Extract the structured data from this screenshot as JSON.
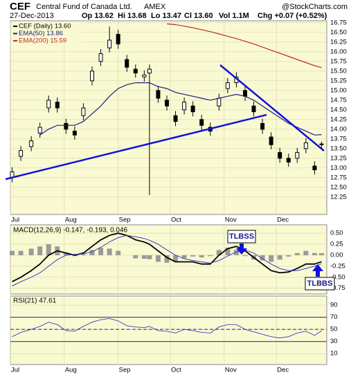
{
  "header": {
    "symbol": "CEF",
    "name": "Central Fund of Canada Ltd.",
    "exchange": "AMEX",
    "source": "@StockCharts.com",
    "date": "27-Dec-2013",
    "open": "Op 13.62",
    "high": "Hi 13.68",
    "low": "Lo 13.47",
    "close": "Cl 13.60",
    "volume": "Vol 1.1M",
    "change": "Chg +0.07 (+0.52%)"
  },
  "chart_data": [
    {
      "type": "candlestick",
      "x": [
        1,
        6,
        12,
        17,
        22,
        27,
        32,
        37,
        42,
        47,
        52,
        57,
        62,
        67,
        72,
        77,
        80,
        85,
        90,
        95,
        100,
        105,
        110,
        115,
        120,
        125,
        130,
        135,
        140,
        145,
        150,
        155,
        160,
        165,
        170,
        175,
        179
      ],
      "xlim": [
        0,
        182
      ],
      "xticks": [
        {
          "value": 0,
          "label": "Jul"
        },
        {
          "value": 31,
          "label": "Aug"
        },
        {
          "value": 62,
          "label": "Sep"
        },
        {
          "value": 92,
          "label": "Oct"
        },
        {
          "value": 123,
          "label": "Nov"
        },
        {
          "value": 153,
          "label": "Dec"
        }
      ],
      "ylim": [
        11.8,
        16.8
      ],
      "yticks": [
        16.75,
        {
          "value": 16.5,
          "label": "16.50"
        },
        16.25,
        {
          "value": 16,
          "label": "16.00"
        },
        15.75,
        {
          "value": 15.5,
          "label": "15.50"
        },
        15.25,
        {
          "value": 15,
          "label": "15.00"
        },
        14.75,
        {
          "value": 14.5,
          "label": "14.50"
        },
        14.25,
        {
          "value": 14,
          "label": "14.00"
        },
        13.75,
        {
          "value": 13.5,
          "label": "13.50"
        },
        13.25,
        {
          "value": 13,
          "label": "13.00"
        },
        12.75,
        {
          "value": 12.5,
          "label": "12.50"
        },
        12.25
      ],
      "grid": true,
      "ohlc": {
        "name": "CEF (Daily) 13.60",
        "color": "#000000",
        "open": [
          12.75,
          13.3,
          13.55,
          13.9,
          14.55,
          14.7,
          14.15,
          13.95,
          14.35,
          15.25,
          15.75,
          16.1,
          16.45,
          15.8,
          15.55,
          15.35,
          15.45,
          15.0,
          14.75,
          14.35,
          14.5,
          14.6,
          14.25,
          14.05,
          14.6,
          15.05,
          15.2,
          15.0,
          14.6,
          14.15,
          13.8,
          13.4,
          13.25,
          13.25,
          13.5,
          13.05,
          13.62
        ],
        "high": [
          13.02,
          13.57,
          13.82,
          14.17,
          14.87,
          14.82,
          14.27,
          14.07,
          14.67,
          15.62,
          16.07,
          16.65,
          16.57,
          15.92,
          15.67,
          15.52,
          15.67,
          15.12,
          14.87,
          14.47,
          14.82,
          14.72,
          14.37,
          14.17,
          14.92,
          15.32,
          15.47,
          15.12,
          14.72,
          14.27,
          13.92,
          13.52,
          13.37,
          13.52,
          13.77,
          13.17,
          13.68
        ],
        "low": [
          12.63,
          13.18,
          13.43,
          13.78,
          14.43,
          14.43,
          13.88,
          13.73,
          14.23,
          15.13,
          15.63,
          15.98,
          16.08,
          15.48,
          15.33,
          15.23,
          12.3,
          14.68,
          14.48,
          14.08,
          14.38,
          14.33,
          13.98,
          13.83,
          14.48,
          14.93,
          15.08,
          14.73,
          14.33,
          13.88,
          13.48,
          13.13,
          13.03,
          13.13,
          13.38,
          12.83,
          13.47
        ],
        "close": [
          12.9,
          13.45,
          13.7,
          14.05,
          14.75,
          14.55,
          14.0,
          13.85,
          14.55,
          15.5,
          15.95,
          16.3,
          16.2,
          15.6,
          15.45,
          15.4,
          15.55,
          14.8,
          14.6,
          14.2,
          14.7,
          14.45,
          14.1,
          13.95,
          14.8,
          15.2,
          15.35,
          14.85,
          14.45,
          14.0,
          13.6,
          13.25,
          13.15,
          13.4,
          13.65,
          12.95,
          13.6
        ]
      },
      "series": [
        {
          "name": "EMA(50) 13.86",
          "color": "#1a1a8c",
          "values": [
            null,
            null,
            null,
            13.85,
            14.0,
            14.1,
            14.1,
            14.1,
            14.2,
            14.4,
            14.6,
            14.85,
            15.05,
            15.15,
            15.2,
            15.2,
            15.2,
            15.1,
            15.05,
            14.95,
            14.9,
            14.85,
            14.8,
            14.75,
            14.8,
            14.85,
            14.9,
            14.85,
            14.75,
            14.6,
            14.45,
            14.3,
            14.15,
            14.05,
            13.95,
            13.85,
            13.86
          ]
        },
        {
          "name": "EMA(200) 15.59",
          "color": "#c0282d",
          "values": [
            null,
            null,
            null,
            null,
            null,
            null,
            null,
            null,
            null,
            null,
            null,
            null,
            null,
            null,
            null,
            null,
            null,
            null,
            16.72,
            16.7,
            16.66,
            16.62,
            16.57,
            16.52,
            16.46,
            16.4,
            16.34,
            16.27,
            16.2,
            16.12,
            16.04,
            15.96,
            15.88,
            15.8,
            15.72,
            15.64,
            15.59
          ]
        }
      ]
    },
    {
      "type": "macd",
      "title": "MACD(12,26,9) -0.147, -0.193, 0.046",
      "x": [
        1,
        6,
        12,
        17,
        22,
        27,
        32,
        37,
        42,
        47,
        52,
        57,
        62,
        67,
        72,
        77,
        80,
        85,
        90,
        95,
        100,
        105,
        110,
        115,
        120,
        125,
        130,
        135,
        140,
        145,
        150,
        155,
        160,
        165,
        170,
        175,
        179
      ],
      "xlim": [
        0,
        182
      ],
      "ylim": [
        -0.88,
        0.69
      ],
      "yticks": [
        {
          "value": 0.5,
          "label": "0.50"
        },
        {
          "value": 0.25,
          "label": "0.25"
        },
        {
          "value": 0,
          "label": "0.00"
        },
        {
          "value": -0.25,
          "label": "-0.25"
        },
        {
          "value": -0.5,
          "label": "-0.50"
        },
        {
          "value": -0.75,
          "label": "-0.75"
        }
      ],
      "series": [
        {
          "name": "MACD",
          "color": "#000000",
          "values": [
            -0.6,
            -0.5,
            -0.35,
            -0.2,
            0.0,
            0.1,
            0.05,
            0.0,
            0.05,
            0.2,
            0.35,
            0.45,
            0.5,
            0.45,
            0.35,
            0.3,
            0.25,
            0.1,
            -0.05,
            -0.15,
            -0.15,
            -0.15,
            -0.2,
            -0.2,
            0.0,
            0.15,
            0.2,
            0.1,
            -0.05,
            -0.2,
            -0.35,
            -0.4,
            -0.38,
            -0.3,
            -0.2,
            -0.2,
            -0.147
          ]
        },
        {
          "name": "Signal",
          "color": "#3a3ad0",
          "values": [
            -0.7,
            -0.6,
            -0.5,
            -0.4,
            -0.25,
            -0.1,
            0.0,
            0.02,
            0.03,
            0.08,
            0.18,
            0.3,
            0.4,
            0.45,
            0.42,
            0.38,
            0.34,
            0.25,
            0.12,
            0.0,
            -0.08,
            -0.12,
            -0.15,
            -0.18,
            -0.12,
            -0.02,
            0.08,
            0.12,
            0.05,
            -0.08,
            -0.2,
            -0.3,
            -0.35,
            -0.35,
            -0.3,
            -0.25,
            -0.193
          ]
        }
      ],
      "histogram": {
        "color": "#9a9a9a",
        "values": [
          0.1,
          0.1,
          0.15,
          0.2,
          0.25,
          0.2,
          0.05,
          -0.02,
          0.02,
          0.12,
          0.17,
          0.15,
          0.1,
          0.0,
          -0.07,
          -0.08,
          -0.09,
          -0.15,
          -0.17,
          -0.15,
          -0.07,
          -0.03,
          -0.05,
          -0.02,
          0.12,
          0.17,
          0.12,
          -0.02,
          -0.1,
          -0.12,
          -0.15,
          -0.1,
          -0.03,
          0.05,
          0.1,
          0.05,
          0.046
        ]
      },
      "annotations": [
        "TLBSS",
        "TLBBS"
      ]
    },
    {
      "type": "rsi",
      "title": "RSI(21) 47.61",
      "x": [
        1,
        6,
        12,
        17,
        22,
        27,
        32,
        37,
        42,
        47,
        52,
        57,
        62,
        67,
        72,
        77,
        80,
        85,
        90,
        95,
        100,
        105,
        110,
        115,
        120,
        125,
        130,
        135,
        140,
        145,
        150,
        155,
        160,
        165,
        170,
        175,
        179
      ],
      "xlim": [
        0,
        182
      ],
      "xticks": [
        {
          "value": 0,
          "label": "Jul"
        },
        {
          "value": 31,
          "label": "Aug"
        },
        {
          "value": 62,
          "label": "Sep"
        },
        {
          "value": 92,
          "label": "Oct"
        },
        {
          "value": 123,
          "label": "Nov"
        },
        {
          "value": 153,
          "label": "Dec"
        }
      ],
      "ylim": [
        -8,
        105
      ],
      "yticks": [
        90,
        70,
        50,
        30,
        10
      ],
      "levels": [
        70,
        50,
        30
      ],
      "series": [
        {
          "name": "RSI",
          "color": "#3a3ad0",
          "values": [
            38,
            45,
            50,
            55,
            62,
            58,
            48,
            47,
            55,
            62,
            66,
            68,
            64,
            56,
            54,
            53,
            55,
            48,
            47,
            44,
            50,
            48,
            45,
            44,
            54,
            58,
            58,
            50,
            46,
            42,
            38,
            36,
            38,
            44,
            47,
            40,
            47.61
          ]
        }
      ]
    }
  ]
}
